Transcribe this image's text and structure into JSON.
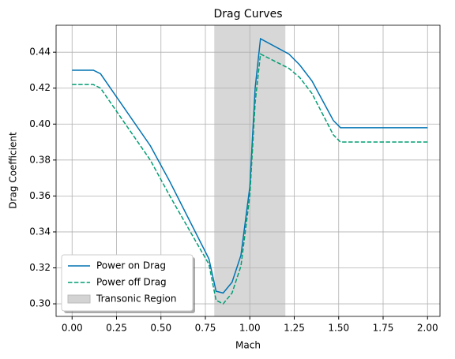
{
  "chart_data": {
    "type": "line",
    "title": "Drag Curves",
    "x_label": "Mach",
    "y_label": "Drag Coefficient",
    "x": [
      0,
      0.12,
      0.16,
      0.44,
      0.55,
      0.77,
      0.81,
      0.85,
      0.9,
      0.95,
      1.0,
      1.03,
      1.06,
      1.22,
      1.28,
      1.35,
      1.47,
      1.51,
      2.0
    ],
    "series": [
      {
        "name": "Power on Drag",
        "color": "#0173b2",
        "dash": false,
        "values": [
          0.43,
          0.43,
          0.428,
          0.388,
          0.368,
          0.325,
          0.307,
          0.306,
          0.312,
          0.327,
          0.365,
          0.42,
          0.4475,
          0.439,
          0.433,
          0.424,
          0.402,
          0.398,
          0.398
        ]
      },
      {
        "name": "Power off Drag",
        "color": "#029e73",
        "dash": true,
        "values": [
          0.422,
          0.422,
          0.42,
          0.38,
          0.36,
          0.322,
          0.302,
          0.3,
          0.306,
          0.321,
          0.36,
          0.412,
          0.439,
          0.431,
          0.426,
          0.417,
          0.394,
          0.39,
          0.39
        ]
      }
    ],
    "spans": [
      {
        "name": "Transonic Region",
        "range": [
          0.8,
          1.2
        ],
        "color": "#d3d3d3"
      }
    ],
    "xlim": [
      -0.09,
      2.07
    ],
    "ylim": [
      0.293,
      0.455
    ],
    "xticks": [
      {
        "value": 0,
        "label": "0.00"
      },
      0.25,
      {
        "value": 0.5,
        "label": "0.50"
      },
      0.75,
      {
        "value": 1,
        "label": "1.00"
      },
      1.25,
      {
        "value": 1.5,
        "label": "1.50"
      },
      1.75,
      {
        "value": 2,
        "label": "2.00"
      }
    ],
    "yticks": [
      {
        "value": 0.3,
        "label": "0.30"
      },
      0.32,
      0.34,
      0.36,
      0.38,
      {
        "value": 0.4,
        "label": "0.40"
      },
      0.42,
      0.44
    ],
    "grid": true,
    "legend": "lower left"
  }
}
